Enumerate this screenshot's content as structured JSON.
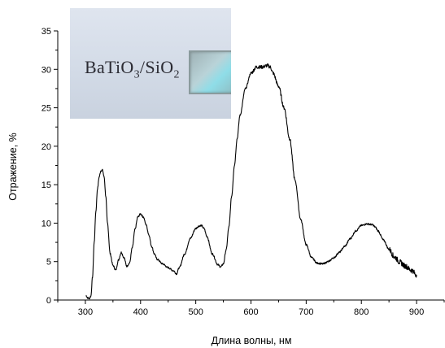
{
  "chart_data": {
    "type": "line",
    "title": "",
    "xlabel": "Длина волны, нм",
    "ylabel": "Отражение, %",
    "xlim": [
      250,
      950
    ],
    "ylim": [
      0,
      35
    ],
    "x_ticks": [
      "300",
      "400",
      "500",
      "600",
      "700",
      "800",
      "900"
    ],
    "y_ticks": [
      "0",
      "5",
      "10",
      "15",
      "20",
      "25",
      "30",
      "35"
    ],
    "grid": false,
    "inset_image": {
      "text": "BaTiO3/SiO2",
      "caption": "BaTiO",
      "sub1": "3",
      "sep": "/SiO",
      "sub2": "2"
    },
    "series": [
      {
        "color": "#000000",
        "x": [
          301,
          304,
          307,
          310,
          313,
          316,
          319,
          322,
          325,
          328,
          331,
          334,
          337,
          340,
          345,
          350,
          355,
          360,
          365,
          370,
          375,
          380,
          385,
          390,
          395,
          400,
          405,
          410,
          415,
          420,
          425,
          430,
          440,
          450,
          460,
          465,
          470,
          480,
          490,
          500,
          505,
          510,
          515,
          520,
          530,
          540,
          545,
          550,
          555,
          560,
          565,
          570,
          575,
          580,
          590,
          600,
          610,
          620,
          630,
          635,
          640,
          650,
          660,
          670,
          680,
          690,
          700,
          710,
          720,
          730,
          740,
          750,
          760,
          770,
          780,
          790,
          800,
          810,
          820,
          825,
          830,
          840,
          850,
          860,
          870,
          880,
          890,
          900
        ],
        "y": [
          0.6,
          0.3,
          0.2,
          0.5,
          3.0,
          7.5,
          11.5,
          14.5,
          16.0,
          16.8,
          16.9,
          16.0,
          13.5,
          10.0,
          6.0,
          4.5,
          3.9,
          5.2,
          6.2,
          5.5,
          4.4,
          4.8,
          6.8,
          9.2,
          10.8,
          11.2,
          10.8,
          9.8,
          8.5,
          7.0,
          6.0,
          5.3,
          4.7,
          4.2,
          3.8,
          3.4,
          4.2,
          6.0,
          8.0,
          9.3,
          9.6,
          9.7,
          9.3,
          8.3,
          6.0,
          4.6,
          4.3,
          4.7,
          6.5,
          9.5,
          13.5,
          17.5,
          21.0,
          24.0,
          27.5,
          29.5,
          30.3,
          30.3,
          30.5,
          30.3,
          29.5,
          27.8,
          25.0,
          21.0,
          15.5,
          10.5,
          7.2,
          5.5,
          4.8,
          4.7,
          5.0,
          5.5,
          6.2,
          7.0,
          8.0,
          9.0,
          9.7,
          9.9,
          9.8,
          9.5,
          9.0,
          7.8,
          6.6,
          5.6,
          4.9,
          4.4,
          3.9,
          3.3
        ]
      }
    ]
  }
}
